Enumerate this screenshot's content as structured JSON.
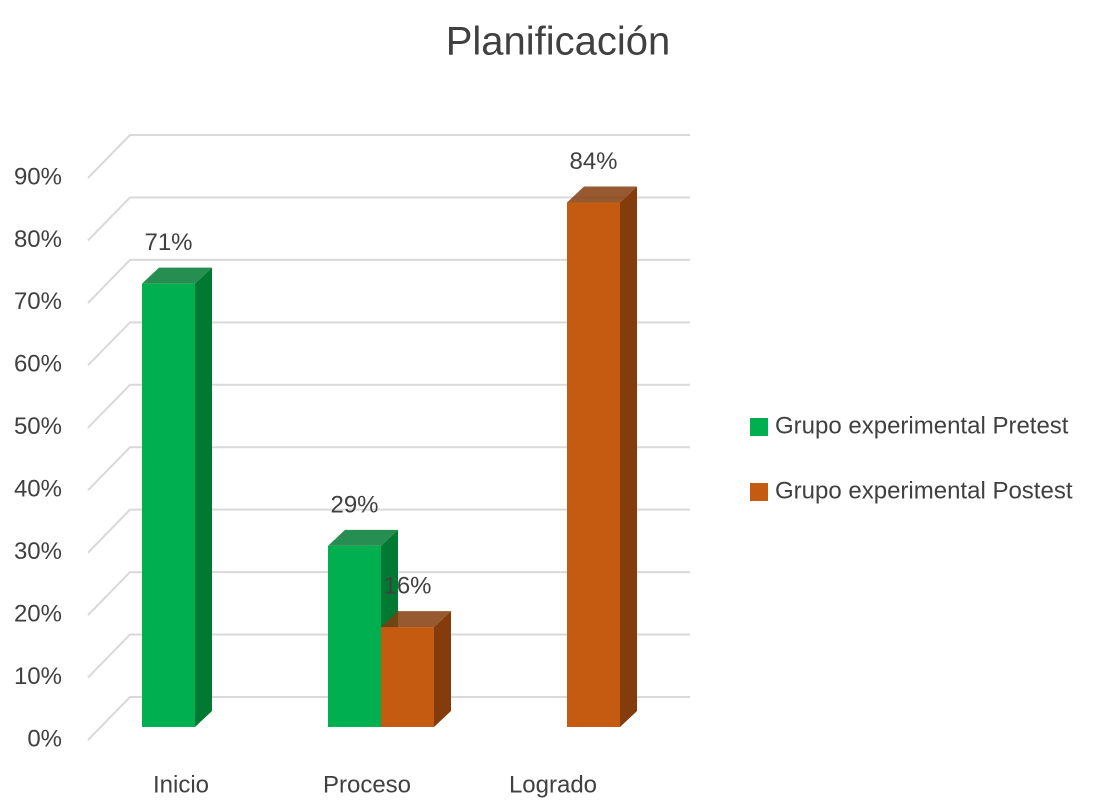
{
  "chart_data": {
    "type": "bar",
    "title": "Planificación",
    "categories": [
      "Inicio",
      "Proceso",
      "Logrado"
    ],
    "series": [
      {
        "name": "Grupo experimental Pretest",
        "color": "#00b050",
        "side_color": "#007a33",
        "values": [
          71,
          29,
          null
        ],
        "value_labels": [
          "71%",
          "29%",
          null
        ]
      },
      {
        "name": "Grupo experimental Postest",
        "color": "#c55a11",
        "side_color": "#843c0c",
        "values": [
          null,
          16,
          84
        ],
        "value_labels": [
          null,
          "16%",
          "84%"
        ]
      }
    ],
    "ylim": [
      0,
      90
    ],
    "yticks": [
      {
        "value": 0,
        "label": "0%"
      },
      {
        "value": 10,
        "label": "10%"
      },
      {
        "value": 20,
        "label": "20%"
      },
      {
        "value": 30,
        "label": "30%"
      },
      {
        "value": 40,
        "label": "40%"
      },
      {
        "value": 50,
        "label": "50%"
      },
      {
        "value": 60,
        "label": "60%"
      },
      {
        "value": 70,
        "label": "70%"
      },
      {
        "value": 80,
        "label": "80%"
      },
      {
        "value": 90,
        "label": "90%"
      }
    ],
    "grid": true,
    "legend": "right"
  }
}
